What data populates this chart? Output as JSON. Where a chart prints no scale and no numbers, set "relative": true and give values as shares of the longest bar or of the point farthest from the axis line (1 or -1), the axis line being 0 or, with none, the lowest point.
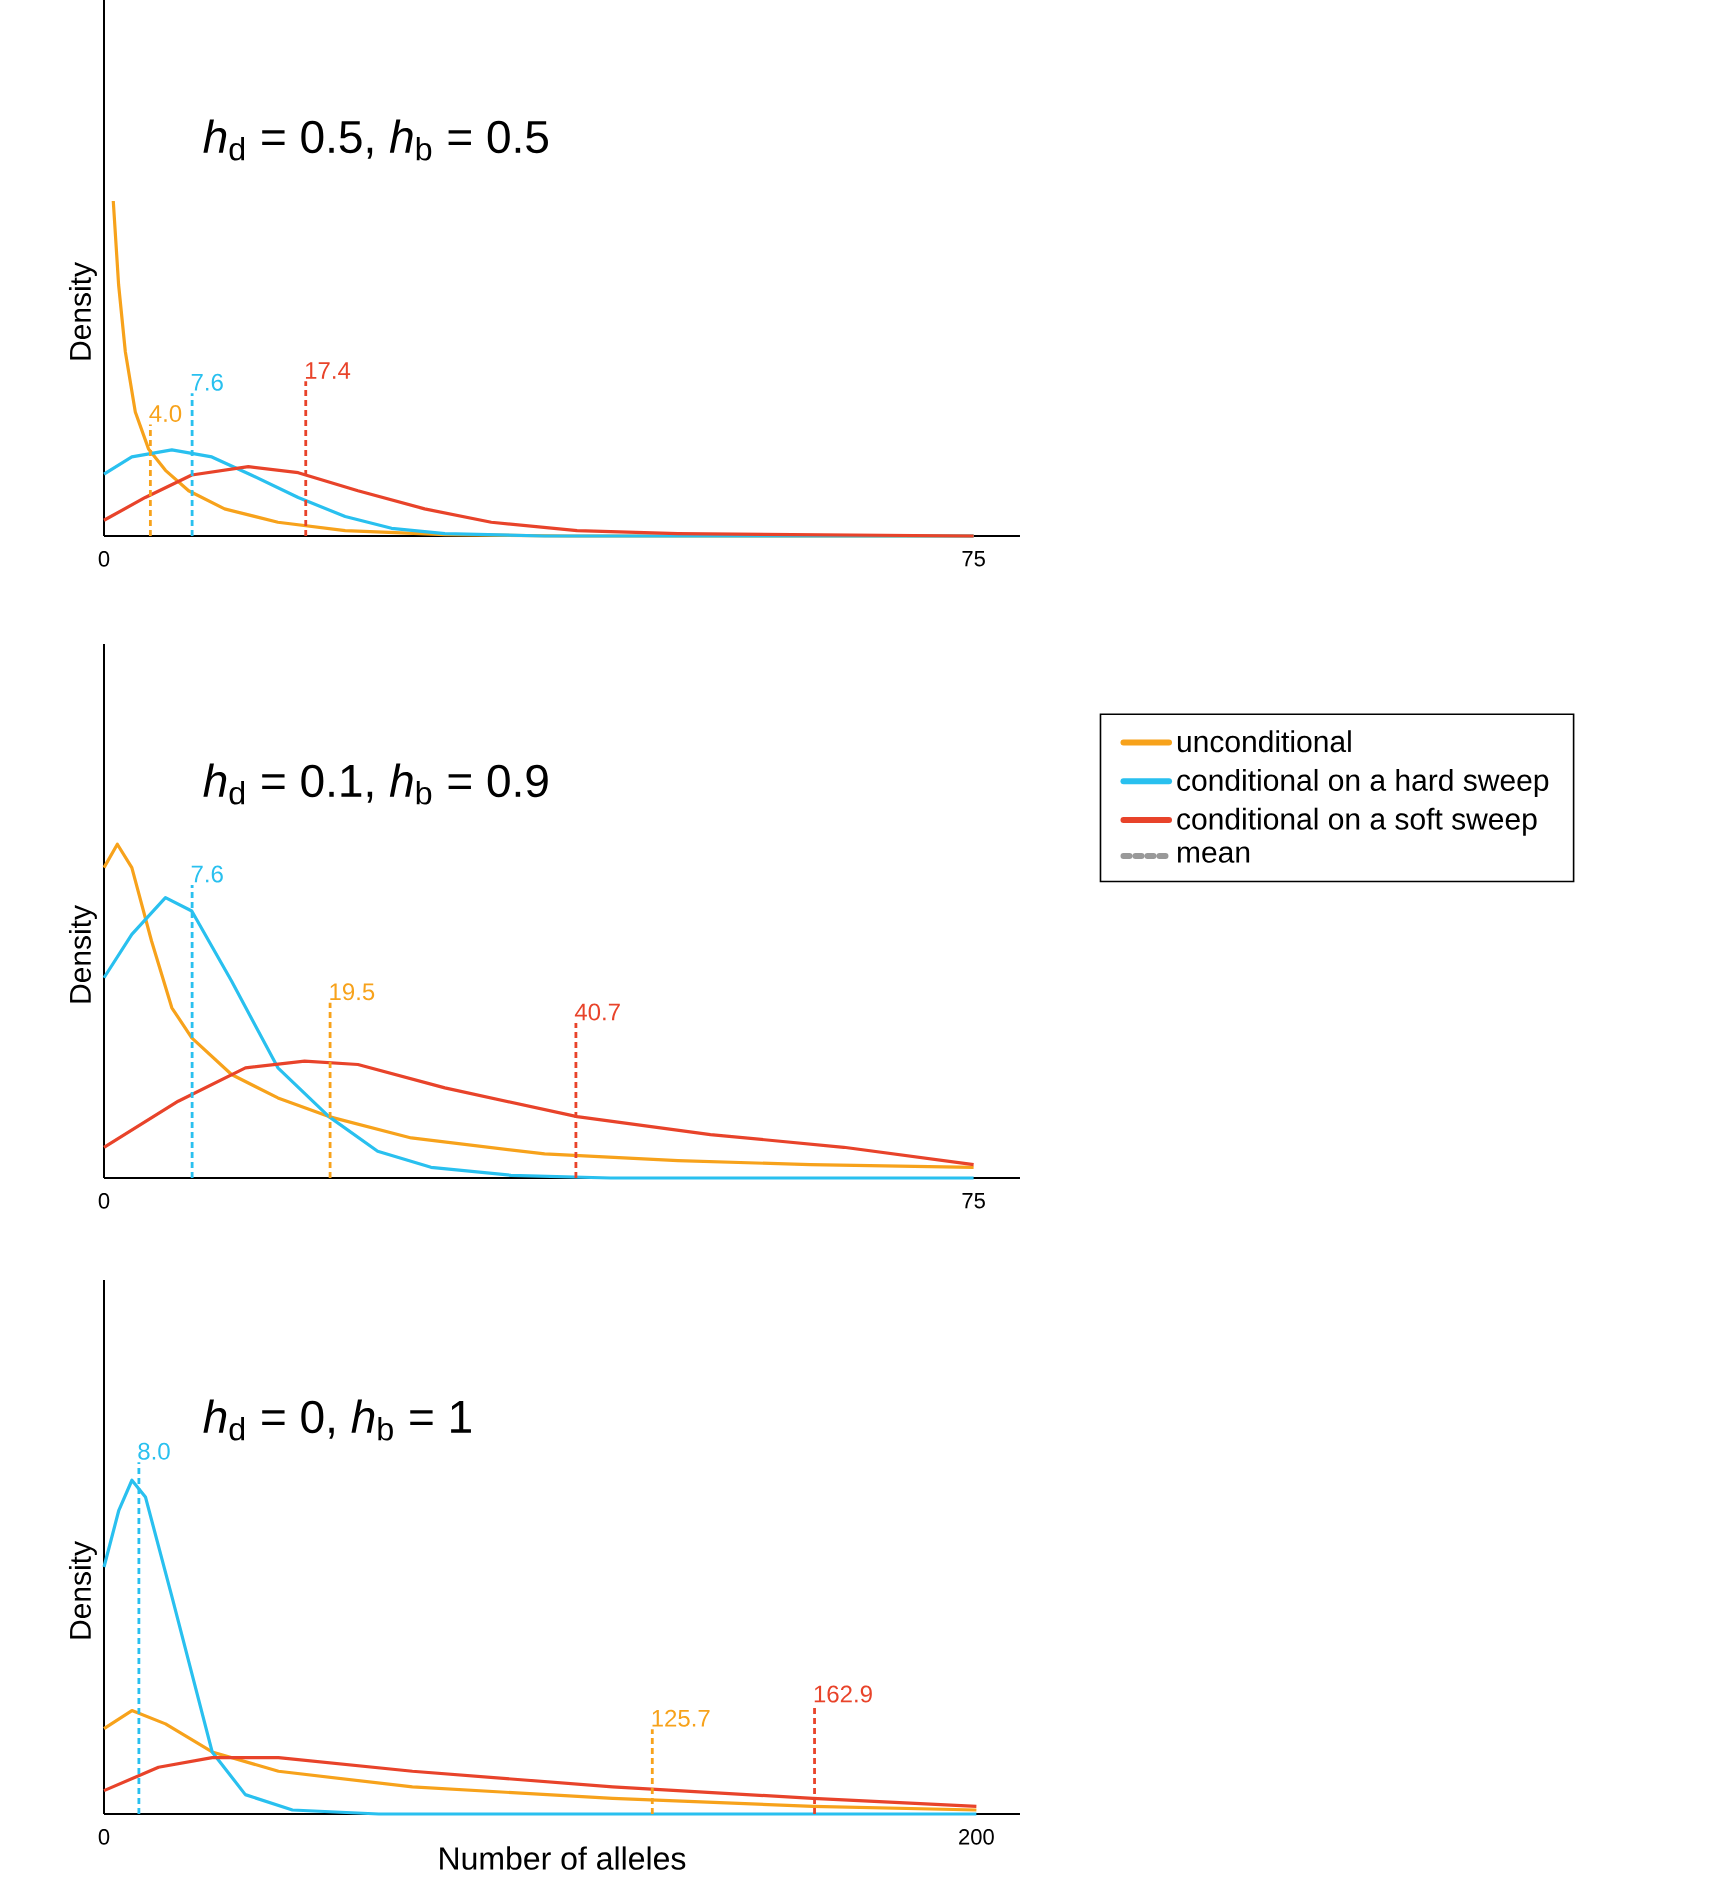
{
  "chart_data": [
    {
      "type": "line",
      "title": "*h*$_{d}$ = 0.5, *h*$_{b}$ = 0.5",
      "ylabel": "Density",
      "relative": true,
      "xlim": [
        0,
        79
      ],
      "xticks": [
        0,
        75
      ],
      "line_style": "solid",
      "marker": "none",
      "series": [
        {
          "color": "#f7a21b",
          "x": [
            0.8,
            1.26,
            1.84,
            2.7,
            3.84,
            5.3,
            7.3,
            10.4,
            15,
            20.8,
            29.4,
            40,
            75
          ],
          "values": [
            1.0,
            0.75,
            0.55,
            0.37,
            0.26,
            0.196,
            0.135,
            0.081,
            0.041,
            0.016,
            0.004,
            0,
            0
          ]
        },
        {
          "color": "#29c0ef",
          "x": [
            0,
            2.4,
            5.85,
            9.3,
            12.7,
            16.75,
            20.8,
            24.8,
            29.4,
            38,
            75
          ],
          "values": [
            0.185,
            0.236,
            0.257,
            0.236,
            0.182,
            0.115,
            0.058,
            0.023,
            0.007,
            0,
            0
          ]
        },
        {
          "color": "#e8432a",
          "x": [
            0,
            3.56,
            7.57,
            12.45,
            16.75,
            21.9,
            27.65,
            33.4,
            40.8,
            49.5,
            75
          ],
          "values": [
            0.047,
            0.115,
            0.182,
            0.207,
            0.189,
            0.135,
            0.081,
            0.041,
            0.016,
            0.007,
            0
          ]
        }
      ],
      "ref_lines": [
        {
          "axis": "x",
          "value": 4.0,
          "label": "4.0",
          "color": "#f7a21b",
          "line_style": "dashed"
        },
        {
          "axis": "x",
          "value": 7.6,
          "label": "7.6",
          "color": "#29c0ef",
          "line_style": "dashed"
        },
        {
          "axis": "x",
          "value": 17.4,
          "label": "17.4",
          "color": "#e8432a",
          "line_style": "dashed"
        }
      ]
    },
    {
      "type": "line",
      "title": "*h*$_{d}$ = 0.1, *h*$_{b}$ = 0.9",
      "ylabel": "Density",
      "relative": true,
      "xlim": [
        0,
        79
      ],
      "xticks": [
        0,
        75
      ],
      "line_style": "solid",
      "marker": "none",
      "legend": "right",
      "annotations": [
        "mean"
      ],
      "series": [
        {
          "name": "unconditional",
          "color": "#f7a21b",
          "x": [
            0,
            1.15,
            2.4,
            4.1,
            5.85,
            7.57,
            11,
            15,
            19.4,
            26.5,
            38,
            49.5,
            60.9,
            75
          ],
          "values": [
            0.93,
            1.0,
            0.93,
            0.71,
            0.51,
            0.42,
            0.31,
            0.24,
            0.184,
            0.12,
            0.072,
            0.052,
            0.04,
            0.032
          ]
        },
        {
          "name": "conditional on a hard sweep",
          "color": "#29c0ef",
          "x": [
            0,
            2.4,
            5.3,
            7.57,
            11,
            15,
            19.4,
            23.6,
            28.2,
            35.1,
            43.7,
            75
          ],
          "values": [
            0.6,
            0.73,
            0.84,
            0.8,
            0.59,
            0.33,
            0.184,
            0.08,
            0.032,
            0.008,
            0,
            0
          ]
        },
        {
          "name": "conditional on a soft sweep",
          "color": "#e8432a",
          "x": [
            0,
            6.4,
            12.2,
            17.3,
            21.9,
            29.4,
            40.8,
            52.3,
            63.8,
            75
          ],
          "values": [
            0.092,
            0.23,
            0.33,
            0.35,
            0.34,
            0.27,
            0.184,
            0.13,
            0.092,
            0.04
          ]
        }
      ],
      "ref_lines": [
        {
          "axis": "x",
          "value": 7.6,
          "label": "7.6",
          "color": "#29c0ef",
          "line_style": "dashed"
        },
        {
          "axis": "x",
          "value": 19.5,
          "label": "19.5",
          "color": "#f7a21b",
          "line_style": "dashed"
        },
        {
          "axis": "x",
          "value": 40.7,
          "label": "40.7",
          "color": "#e8432a",
          "line_style": "dashed"
        }
      ]
    },
    {
      "type": "line",
      "title": "*h*$_{d}$ = 0, *h*$_{b}$ = 1",
      "ylabel": "Density",
      "xlabel": "Number of alleles",
      "relative": true,
      "xlim": [
        0,
        210
      ],
      "xticks": [
        0,
        200
      ],
      "line_style": "solid",
      "marker": "none",
      "series": [
        {
          "color": "#f7a21b",
          "x": [
            0,
            6.4,
            14.1,
            24.8,
            40,
            70.7,
            116.6,
            162.5,
            200
          ],
          "values": [
            0.256,
            0.31,
            0.27,
            0.186,
            0.128,
            0.081,
            0.047,
            0.023,
            0.012
          ]
        },
        {
          "color": "#29c0ef",
          "x": [
            0,
            3.4,
            6.4,
            9.5,
            15.6,
            24.8,
            32.4,
            43.2,
            63,
            200
          ],
          "values": [
            0.74,
            0.91,
            1.0,
            0.95,
            0.65,
            0.186,
            0.058,
            0.012,
            0,
            0
          ]
        },
        {
          "color": "#e8432a",
          "x": [
            0,
            12.5,
            24.8,
            40,
            70.7,
            116.6,
            162.5,
            200
          ],
          "values": [
            0.07,
            0.14,
            0.169,
            0.169,
            0.128,
            0.081,
            0.047,
            0.023
          ]
        }
      ],
      "ref_lines": [
        {
          "axis": "x",
          "value": 8.0,
          "label": "8.0",
          "color": "#29c0ef",
          "line_style": "dashed"
        },
        {
          "axis": "x",
          "value": 125.7,
          "label": "125.7",
          "color": "#f7a21b",
          "line_style": "dashed"
        },
        {
          "axis": "x",
          "value": 162.9,
          "label": "162.9",
          "color": "#e8432a",
          "line_style": "dashed"
        }
      ]
    }
  ]
}
